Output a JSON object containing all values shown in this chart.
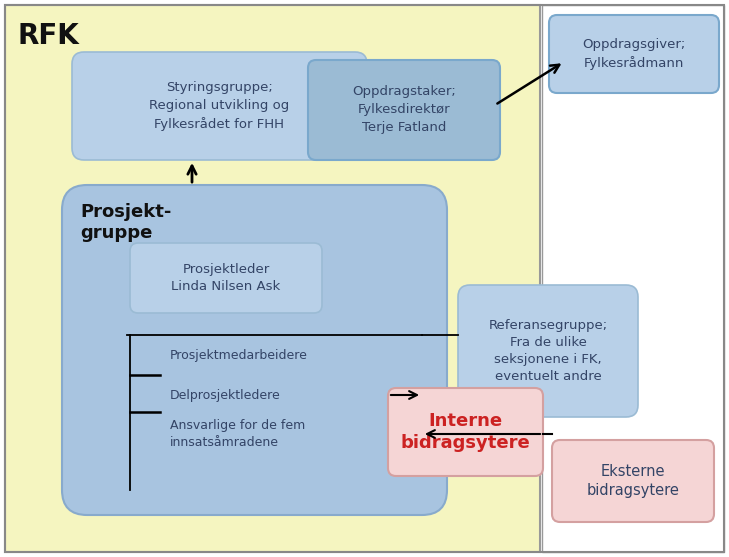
{
  "bg_yellow": "#f5f5c0",
  "bg_white": "#ffffff",
  "box_blue_light": "#b8d0e8",
  "box_blue_mid": "#9bbbd4",
  "box_blue_dark": "#7aa8cc",
  "box_blue_pg": "#a8c4e0",
  "box_pink_light": "#f5d5d5",
  "box_pink_border": "#d4a0a0",
  "text_dark": "#222222",
  "text_blue": "#334466",
  "text_red": "#cc2222",
  "title_rfk": "RFK",
  "styringsgruppe_text": "Styringsgruppe;\nRegional utvikling og\nFylkesrådet for FHH",
  "oppdragstaker_text": "Oppdragstaker;\nFylkesdirektør\nTerje Fatland",
  "oppdragsgiver_text": "Oppdragsgiver;\nFylkesrådmann",
  "prosjektleder_text": "Prosjektleder\nLinda Nilsen Ask",
  "prosjektgruppe_text": "Prosjekt-\ngruppe",
  "referansegruppe_text": "Referansegruppe;\nFra de ulike\nseksjonene i FK,\neventuelt andre",
  "interne_text": "Interne\nbidragsytere",
  "eksterne_text": "Eksterne\nbidragsytere",
  "prosjektmedarbeidere_text": "Prosjektmedarbeidere",
  "delprosjektledere_text": "Delprosjektledere",
  "ansvarlige_text": "Ansvarlige for de fem\ninnsatsåmradene"
}
